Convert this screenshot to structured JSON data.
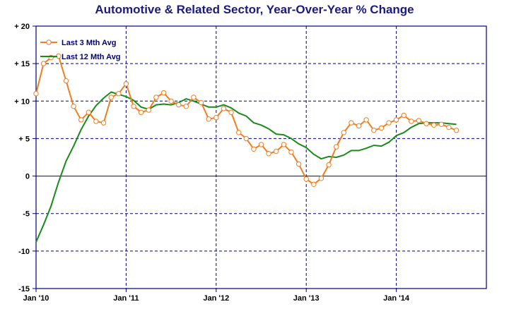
{
  "colors": {
    "title": "#1a1a80",
    "axis": "#000080",
    "grid": "#000080",
    "series_3m": "#f07d20",
    "series_12m": "#1a8a1a"
  },
  "chart_data": {
    "type": "line",
    "title": "Automotive & Related Sector, Year-Over-Year % Change",
    "xlabel": "",
    "ylabel": "",
    "x_unit": "months since Jan '10",
    "xlim": [
      0,
      60
    ],
    "ylim": [
      -15,
      20
    ],
    "y_ticks": [
      20,
      15,
      10,
      5,
      0,
      -5,
      -10,
      -15
    ],
    "y_tick_labels": [
      "+ 20",
      "+ 15",
      "+ 10",
      "+ 5",
      "0",
      "-5",
      "-10",
      "-15"
    ],
    "x_tick_labels": [
      "Jan '10",
      "Jan '11",
      "Jan '12",
      "Jan '13",
      "Jan '14"
    ],
    "x_ticks": [
      0,
      12,
      24,
      36,
      48
    ],
    "grid": true,
    "legend_position": "top-left",
    "series": [
      {
        "name": "Last 3 Mth Avg",
        "marker": "circle",
        "x": [
          0,
          1,
          2,
          3,
          4,
          5,
          6,
          7,
          8,
          9,
          10,
          11,
          12,
          13,
          14,
          15,
          16,
          17,
          18,
          19,
          20,
          21,
          22,
          23,
          24,
          25,
          26,
          27,
          28,
          29,
          30,
          31,
          32,
          33,
          34,
          35,
          36,
          37,
          38,
          39,
          40,
          41,
          42,
          43,
          44,
          45,
          46,
          47,
          48,
          49,
          50,
          51,
          52,
          53,
          54,
          55,
          56
        ],
        "values": [
          11.0,
          15.0,
          15.8,
          16.0,
          12.7,
          9.3,
          7.5,
          8.5,
          7.3,
          7.1,
          10.5,
          11.0,
          12.3,
          9.3,
          8.5,
          8.8,
          10.5,
          11.1,
          10.0,
          9.5,
          9.3,
          10.5,
          9.8,
          7.6,
          7.8,
          9.0,
          8.5,
          5.8,
          5.0,
          3.6,
          4.2,
          3.0,
          3.3,
          4.2,
          3.2,
          1.6,
          -0.4,
          -1.1,
          -0.3,
          1.5,
          3.9,
          5.8,
          7.1,
          6.7,
          7.5,
          6.1,
          6.4,
          7.1,
          7.5,
          8.1,
          7.3,
          7.4,
          7.0,
          6.8,
          6.9,
          6.5,
          6.1
        ]
      },
      {
        "name": "Last 12 Mth Avg",
        "marker": "none",
        "x": [
          0,
          1,
          2,
          3,
          4,
          5,
          6,
          7,
          8,
          9,
          10,
          11,
          12,
          13,
          14,
          15,
          16,
          17,
          18,
          19,
          20,
          21,
          22,
          23,
          24,
          25,
          26,
          27,
          28,
          29,
          30,
          31,
          32,
          33,
          34,
          35,
          36,
          37,
          38,
          39,
          40,
          41,
          42,
          43,
          44,
          45,
          46,
          47,
          48,
          49,
          50,
          51,
          52,
          53,
          54,
          55,
          56
        ],
        "values": [
          -8.8,
          -6.5,
          -4.0,
          -0.8,
          2.0,
          4.0,
          6.2,
          8.0,
          9.4,
          10.4,
          11.2,
          10.9,
          10.6,
          10.1,
          9.2,
          8.9,
          9.5,
          9.6,
          9.5,
          9.8,
          10.3,
          10.0,
          9.6,
          9.2,
          9.2,
          9.5,
          9.1,
          8.4,
          8.0,
          7.1,
          6.8,
          6.3,
          5.6,
          5.5,
          5.0,
          4.3,
          3.8,
          2.9,
          2.3,
          2.6,
          2.5,
          2.8,
          3.4,
          3.4,
          3.7,
          4.1,
          4.0,
          4.5,
          5.4,
          5.8,
          6.5,
          7.0,
          7.1,
          7.1,
          7.1,
          7.0,
          6.9
        ]
      }
    ]
  }
}
